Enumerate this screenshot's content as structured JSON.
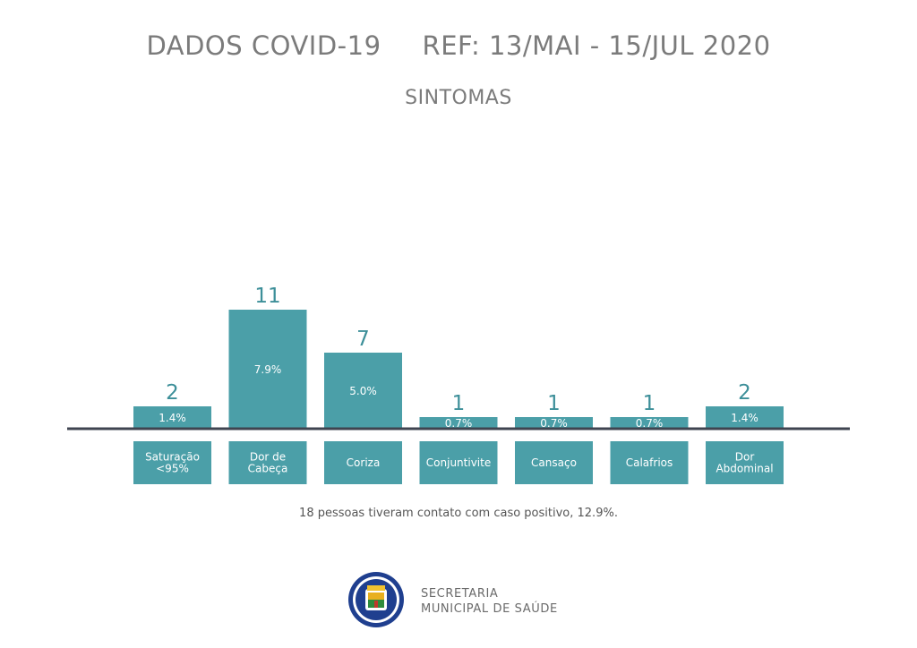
{
  "header": {
    "title": "DADOS COVID-19",
    "reference": "REF: 13/MAI - 15/JUL 2020",
    "subtitle": "SINTOMAS"
  },
  "chart_data": {
    "type": "bar",
    "categories": [
      [
        "Saturação",
        "<95%"
      ],
      [
        "Dor de",
        "Cabeça"
      ],
      [
        "Coriza"
      ],
      [
        "Conjuntivite"
      ],
      [
        "Cansaço"
      ],
      [
        "Calafrios"
      ],
      [
        "Dor",
        "Abdominal"
      ]
    ],
    "values": [
      2,
      11,
      7,
      1,
      1,
      1,
      2
    ],
    "percent_labels": [
      "1.4%",
      "7.9%",
      "5.0%",
      "0.7%",
      "0.7%",
      "0.7%",
      "1.4%"
    ],
    "ylim": [
      0,
      11
    ],
    "grid": false,
    "colors": {
      "bar": "#4b9fa8",
      "label_box": "#4b9fa8",
      "value_text": "#3d8f99",
      "axis": "#3f4450"
    }
  },
  "note": "18 pessoas tiveram contato com caso positivo, 12.9%.",
  "footer": {
    "logo_icon": "city-coat-of-arms-icon",
    "line1": "SECRETARIA",
    "line2": "MUNICIPAL DE SAÚDE"
  }
}
